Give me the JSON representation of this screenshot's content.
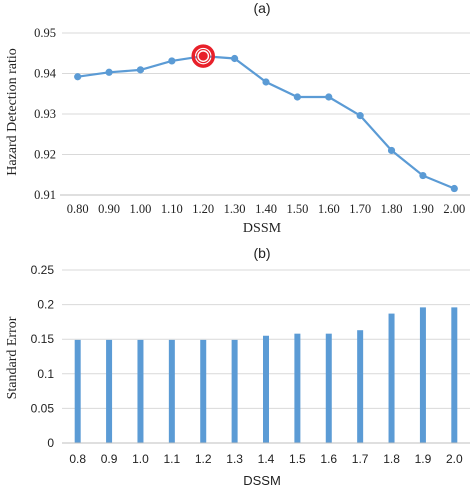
{
  "chart_data": [
    {
      "type": "line",
      "panel_label": "(a)",
      "title": "",
      "xlabel": "DSSM",
      "ylabel": "Hazard Detection ratio",
      "categories": [
        "0.80",
        "0.90",
        "1.00",
        "1.10",
        "1.20",
        "1.30",
        "1.40",
        "1.50",
        "1.60",
        "1.70",
        "1.80",
        "1.90",
        "2.00"
      ],
      "values": [
        0.9392,
        0.9403,
        0.9409,
        0.9431,
        0.9443,
        0.9437,
        0.9379,
        0.9342,
        0.9342,
        0.9296,
        0.921,
        0.9148,
        0.9116
      ],
      "ylim": [
        0.91,
        0.95
      ],
      "yticks": [
        "0.91",
        "0.92",
        "0.93",
        "0.94",
        "0.95"
      ],
      "highlight_index": 4,
      "grid": "horizontal",
      "colors": {
        "line": "#5b9bd5",
        "highlight": "#e8202a"
      }
    },
    {
      "type": "bar",
      "panel_label": "(b)",
      "title": "",
      "xlabel": "DSSM",
      "ylabel": "Standard  Error",
      "categories": [
        "0.8",
        "0.9",
        "1.0",
        "1.1",
        "1.2",
        "1.3",
        "1.4",
        "1.5",
        "1.6",
        "1.7",
        "1.8",
        "1.9",
        "2.0"
      ],
      "values": [
        0.149,
        0.149,
        0.149,
        0.149,
        0.149,
        0.149,
        0.155,
        0.158,
        0.158,
        0.163,
        0.187,
        0.196,
        0.196
      ],
      "ylim": [
        0,
        0.25
      ],
      "yticks": [
        "0",
        "0.05",
        "0.1",
        "0.15",
        "0.2",
        "0.25"
      ],
      "grid": "horizontal",
      "colors": {
        "bar": "#5b9bd5"
      }
    }
  ]
}
